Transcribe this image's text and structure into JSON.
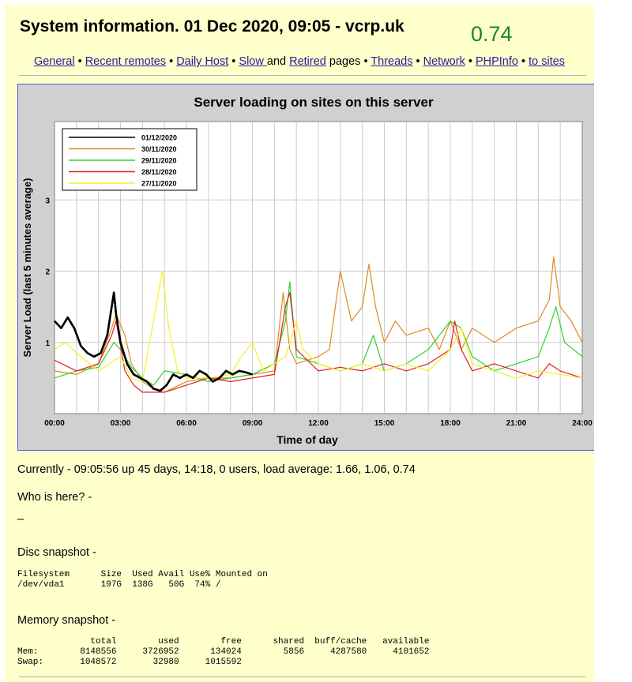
{
  "header": {
    "title": "System information. 01 Dec 2020, 09:05 - vcrp.uk",
    "load_value": "0.74"
  },
  "nav": {
    "general": "General",
    "recent_remotes": "Recent remotes",
    "daily_host": "Daily Host",
    "slow": "Slow ",
    "and_text": "and",
    "retired": "Retired",
    "pages_text": "pages",
    "threads": "Threads",
    "network": "Network",
    "phpinfo": "PHPInfo",
    "to_sites": "to sites",
    "separator": "•"
  },
  "colors": {
    "page_bg": "#ffffcc",
    "chart_bg": "#d0d0d0",
    "plot_bg": "#ffffff",
    "link": "#2a1a9a",
    "load_value": "#1a8a1a"
  },
  "chart_data": {
    "type": "line",
    "title": "Server loading on sites on this server",
    "xlabel": "Time of day",
    "ylabel": "Server Load (last 5 minutes average)",
    "x_unit": "hours",
    "xlim": [
      0,
      24
    ],
    "ylim": [
      0,
      4.1
    ],
    "xticks": [
      "00:00",
      "03:00",
      "06:00",
      "09:00",
      "12:00",
      "15:00",
      "18:00",
      "21:00",
      "24:00"
    ],
    "yticks": [
      "1",
      "2",
      "3"
    ],
    "ytick_values": [
      1,
      2,
      3
    ],
    "grid": true,
    "legend_position": "top-left",
    "series": [
      {
        "name": "01/12/2020",
        "color": "#000000",
        "x": [
          0,
          0.3,
          0.6,
          0.9,
          1.2,
          1.5,
          1.8,
          2.1,
          2.4,
          2.7,
          2.8,
          3.0,
          3.3,
          3.6,
          3.9,
          4.2,
          4.5,
          4.8,
          5.1,
          5.4,
          5.7,
          6.0,
          6.3,
          6.6,
          6.9,
          7.2,
          7.5,
          7.8,
          8.1,
          8.4,
          8.7,
          9.0
        ],
        "y": [
          1.3,
          1.2,
          1.35,
          1.2,
          0.95,
          0.85,
          0.8,
          0.85,
          1.1,
          1.7,
          1.4,
          1.0,
          0.7,
          0.55,
          0.5,
          0.45,
          0.35,
          0.32,
          0.4,
          0.55,
          0.5,
          0.55,
          0.5,
          0.6,
          0.55,
          0.45,
          0.5,
          0.6,
          0.55,
          0.6,
          0.58,
          0.55
        ]
      },
      {
        "name": "30/11/2020",
        "color": "#e08a20",
        "x": [
          0,
          1,
          2,
          2.6,
          2.8,
          3.2,
          3.5,
          4,
          4.5,
          5,
          6,
          7,
          8,
          9,
          10,
          10.4,
          10.7,
          11,
          12,
          12.5,
          13,
          13.5,
          14,
          14.3,
          14.6,
          15,
          15.5,
          16,
          17,
          17.5,
          18,
          18.5,
          19,
          20,
          21,
          22,
          22.5,
          22.7,
          23,
          23.5,
          24
        ],
        "y": [
          0.6,
          0.55,
          0.7,
          1.2,
          1.4,
          1.1,
          0.7,
          0.45,
          0.35,
          0.3,
          0.45,
          0.5,
          0.5,
          0.55,
          0.6,
          1.7,
          0.9,
          0.7,
          0.8,
          0.9,
          2.0,
          1.3,
          1.5,
          2.1,
          1.5,
          1.0,
          1.3,
          1.1,
          1.2,
          0.9,
          1.3,
          0.9,
          1.2,
          1.0,
          1.2,
          1.3,
          1.6,
          2.2,
          1.5,
          1.3,
          1.0
        ]
      },
      {
        "name": "29/11/2020",
        "color": "#30d030",
        "x": [
          0,
          1,
          2,
          2.7,
          3.0,
          3.5,
          4,
          4.5,
          5,
          6,
          7,
          8,
          9,
          10,
          10.5,
          10.7,
          11,
          12,
          13,
          14,
          14.5,
          15,
          16,
          17,
          18,
          18.5,
          19,
          20,
          21,
          22,
          22.5,
          22.8,
          23.2,
          23.6,
          24
        ],
        "y": [
          0.5,
          0.6,
          0.65,
          1.0,
          0.9,
          0.65,
          0.5,
          0.4,
          0.6,
          0.55,
          0.45,
          0.5,
          0.55,
          0.7,
          1.3,
          1.85,
          0.8,
          0.7,
          0.6,
          0.7,
          1.1,
          0.6,
          0.7,
          0.9,
          1.3,
          1.2,
          0.8,
          0.6,
          0.7,
          0.8,
          1.2,
          1.5,
          1.0,
          0.9,
          0.8
        ]
      },
      {
        "name": "28/11/2020",
        "color": "#e02020",
        "x": [
          0,
          1,
          2,
          2.6,
          2.8,
          3.2,
          3.6,
          4,
          5,
          6,
          7,
          8,
          9,
          10,
          10.5,
          10.7,
          11,
          12,
          13,
          14,
          15,
          16,
          17,
          18,
          18.2,
          18.5,
          19,
          20,
          21,
          22,
          22.5,
          23,
          24
        ],
        "y": [
          0.75,
          0.6,
          0.7,
          1.1,
          1.3,
          0.6,
          0.4,
          0.3,
          0.3,
          0.4,
          0.5,
          0.45,
          0.5,
          0.55,
          1.5,
          1.7,
          0.9,
          0.6,
          0.65,
          0.6,
          0.7,
          0.6,
          0.7,
          0.9,
          1.3,
          0.9,
          0.6,
          0.7,
          0.6,
          0.5,
          0.7,
          0.6,
          0.5
        ]
      },
      {
        "name": "27/11/2020",
        "color": "#f8f020",
        "x": [
          0,
          0.5,
          1,
          2,
          3,
          3.5,
          4,
          4.5,
          4.9,
          5.2,
          5.6,
          6,
          7,
          8,
          8.5,
          9,
          9.5,
          10,
          10.5,
          10.7,
          11,
          11.3,
          12,
          13,
          14,
          15,
          16,
          17,
          18,
          18.5,
          19,
          20,
          21,
          22,
          23,
          24
        ],
        "y": [
          0.9,
          1.0,
          0.85,
          0.6,
          0.8,
          0.5,
          0.45,
          1.3,
          2.0,
          1.2,
          0.6,
          0.5,
          0.5,
          0.55,
          0.8,
          1.0,
          0.6,
          0.7,
          0.8,
          1.0,
          1.3,
          0.9,
          0.7,
          0.6,
          0.7,
          0.6,
          0.7,
          0.6,
          0.9,
          1.2,
          0.7,
          0.6,
          0.5,
          0.6,
          0.55,
          0.5
        ]
      }
    ]
  },
  "status": {
    "currently": "Currently - 09:05:56 up 45 days, 14:18, 0 users, load average: 1.66, 1.06, 0.74",
    "who_label": "Who is here? -",
    "who_value": "–",
    "disc_label": "Disc snapshot -",
    "memory_label": "Memory snapshot -"
  },
  "disc_snapshot": "Filesystem      Size  Used Avail Use% Mounted on\n/dev/vda1       197G  138G   50G  74% /",
  "memory_snapshot": "              total        used        free      shared  buff/cache   available\nMem:        8148556     3726952      134024        5856     4287580     4101652\nSwap:       1048572       32980     1015592"
}
